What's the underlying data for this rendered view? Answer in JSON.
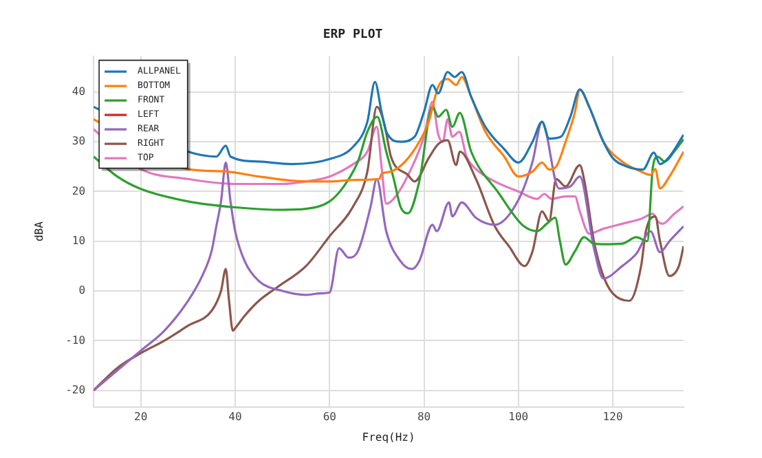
{
  "chart_data": {
    "type": "line",
    "title": "ERP PLOT",
    "xlabel": "Freq(Hz)",
    "ylabel": "dBA",
    "xlim": [
      10,
      135
    ],
    "ylim": [
      -23.3,
      47.2
    ],
    "xticks": [
      20,
      40,
      60,
      80,
      100,
      120
    ],
    "yticks": [
      -20,
      -10,
      0,
      10,
      20,
      30,
      40
    ],
    "grid": true,
    "legend": "top left",
    "marker": "none",
    "line_style": "solid",
    "series": [
      {
        "name": "ALLPANEL",
        "color": "#1f77b4",
        "x": [
          10,
          30,
          36,
          38,
          39,
          45,
          52,
          60,
          65,
          68,
          69.6,
          71,
          72,
          75,
          78,
          80,
          81.8,
          83,
          85,
          86.5,
          88,
          90,
          93,
          97,
          100,
          103,
          105,
          106.5,
          109,
          111,
          113,
          115,
          118,
          120,
          123,
          126.4,
          128.7,
          130,
          132,
          135
        ],
        "values": [
          37,
          28,
          27,
          29.2,
          27,
          26,
          25.5,
          26.5,
          29,
          34,
          42,
          36,
          32,
          30,
          31,
          36,
          41.4,
          39.7,
          44,
          43,
          44,
          39,
          33,
          28.5,
          25.8,
          30,
          34,
          30.6,
          31,
          35,
          40.5,
          37,
          30,
          26.7,
          25,
          24.4,
          27.8,
          25.5,
          27,
          31.4
        ]
      },
      {
        "name": "BOTTOM",
        "color": "#ff7f0e",
        "x": [
          10,
          30,
          38,
          45,
          55,
          60,
          65,
          70.5,
          71,
          73,
          76,
          79,
          81,
          83,
          85,
          86.8,
          88,
          90,
          93,
          97,
          100,
          103,
          105,
          106.5,
          108,
          110,
          112,
          113,
          115,
          118,
          122,
          126,
          128,
          129,
          130,
          132,
          135
        ],
        "values": [
          34.5,
          24.5,
          24,
          23,
          22,
          22,
          22.3,
          22.5,
          23.5,
          24,
          26,
          30,
          34,
          41,
          42.6,
          41.4,
          43,
          39,
          32,
          27,
          23,
          24,
          25.8,
          24.4,
          25,
          30,
          36,
          40.5,
          37,
          30,
          26,
          24,
          23.3,
          24.5,
          20.6,
          23,
          28
        ]
      },
      {
        "name": "FRONT",
        "color": "#2ca02c",
        "x": [
          10,
          15,
          20,
          30,
          40,
          50,
          55,
          60,
          63,
          66,
          68,
          70.1,
          72,
          73.6,
          75,
          76.6,
          79,
          81.8,
          83,
          84.7,
          86,
          87.6,
          90,
          95.8,
          100.8,
          104,
          106,
          107.8,
          108.8,
          110,
          112,
          113.9,
          116,
          118.3,
          122,
          125,
          127.3,
          128.5,
          129.5,
          131,
          133,
          135
        ],
        "values": [
          27,
          23,
          20.5,
          18,
          16.8,
          16.3,
          16.5,
          18,
          21,
          26,
          32,
          35,
          28,
          22.5,
          17,
          15.6,
          22,
          37,
          35,
          36.4,
          33,
          35.8,
          28,
          19.7,
          13.3,
          12,
          13.5,
          14.7,
          10,
          5.3,
          8,
          10.8,
          9.5,
          9.4,
          9.5,
          10.8,
          10,
          25,
          27,
          26,
          28,
          30.5
        ]
      },
      {
        "name": "LEFT",
        "color": "#d62728"
      },
      {
        "name": "REAR",
        "color": "#9467bd",
        "x": [
          10,
          15,
          20,
          25,
          30,
          33,
          35,
          36,
          37,
          38,
          39,
          40,
          42,
          45,
          50,
          55,
          58,
          60,
          62,
          64,
          66,
          68.7,
          70,
          72,
          75,
          77.4,
          79,
          81.8,
          82.7,
          85.3,
          86,
          88,
          91,
          95,
          100,
          103,
          105,
          108.6,
          111,
          113,
          116,
          118,
          122,
          125,
          128,
          130,
          132,
          135
        ],
        "values": [
          -20,
          -16,
          -12,
          -8,
          -2,
          3,
          8,
          13,
          18,
          25.8,
          18,
          12,
          6,
          2,
          0,
          -0.8,
          -0.5,
          -0.3,
          8.6,
          6.7,
          8,
          17,
          22.5,
          12,
          6,
          4.4,
          6,
          13.3,
          12,
          17.8,
          15,
          17.8,
          14.7,
          13.3,
          18.3,
          26,
          34,
          20.6,
          21,
          23,
          8.6,
          2.5,
          5,
          7.5,
          12,
          7.8,
          10,
          13
        ]
      },
      {
        "name": "RIGHT",
        "color": "#8c564b",
        "x": [
          10,
          15,
          20,
          25,
          30,
          35,
          37,
          38,
          38.7,
          39.5,
          40,
          42,
          45,
          49,
          55,
          60,
          65,
          68,
          70,
          71.6,
          73,
          76.6,
          78,
          81,
          83,
          85,
          86.8,
          87.6,
          91,
          95,
          98,
          101.3,
          103,
          105,
          106.5,
          108,
          110,
          113,
          114,
          116,
          118,
          120,
          123.5,
          126,
          127,
          129,
          130,
          132,
          134,
          135
        ],
        "values": [
          -20,
          -15.5,
          -12.5,
          -10,
          -7,
          -4,
          0,
          4.4,
          -2,
          -8,
          -7.5,
          -5,
          -2,
          0.8,
          5,
          11,
          17,
          24,
          37,
          33.6,
          27,
          23.3,
          22,
          26.7,
          29.5,
          30.3,
          25.3,
          28,
          22.5,
          13,
          9,
          5,
          8,
          16,
          14,
          22.5,
          21,
          25.3,
          22,
          10,
          3,
          -0.5,
          -2,
          5,
          12,
          15,
          10,
          3,
          5,
          9
        ]
      },
      {
        "name": "TOP",
        "color": "#e377c2",
        "x": [
          10,
          20,
          30,
          40,
          50,
          55,
          60,
          65,
          68,
          70,
          71,
          72,
          74,
          77,
          80,
          81.8,
          83,
          84,
          85,
          86,
          87.5,
          89,
          91,
          95,
          100,
          104,
          105.5,
          107,
          110,
          112,
          113,
          115,
          118,
          122,
          126,
          128.5,
          129.5,
          130.5,
          133,
          135
        ],
        "values": [
          32.5,
          24.5,
          22.5,
          21.5,
          21.5,
          22,
          23,
          25.5,
          28,
          33,
          25,
          17.5,
          19,
          24,
          31,
          38,
          31.5,
          30,
          34.5,
          31,
          32,
          27,
          24.5,
          22,
          20,
          18.5,
          19.5,
          18.5,
          19,
          19,
          16,
          11.5,
          12.5,
          13.5,
          14.5,
          15.5,
          14,
          13.5,
          15.5,
          17
        ]
      }
    ]
  }
}
